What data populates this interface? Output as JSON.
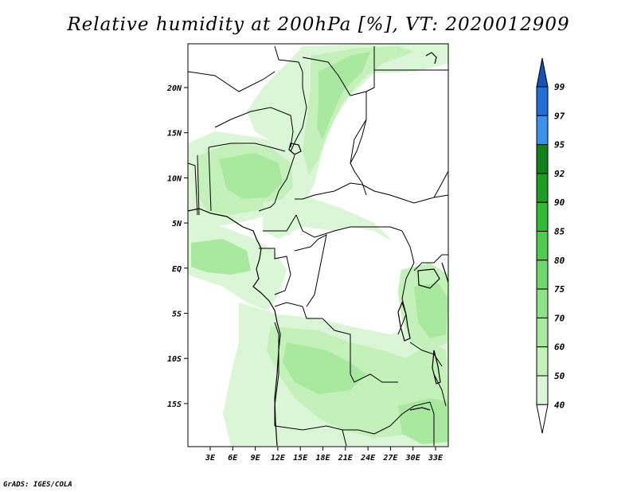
{
  "title": "Relative humidity at 200hPa [%], VT: 2020012909",
  "credit": "GrADS: IGES/COLA",
  "map": {
    "lat_ticks": [
      "20N",
      "15N",
      "10N",
      "5N",
      "EQ",
      "5S",
      "10S",
      "15S"
    ],
    "lon_ticks": [
      "3E",
      "6E",
      "9E",
      "12E",
      "15E",
      "18E",
      "21E",
      "24E",
      "27E",
      "30E",
      "33E"
    ]
  },
  "colorbar": {
    "levels": [
      "40",
      "50",
      "60",
      "70",
      "75",
      "80",
      "85",
      "90",
      "92",
      "95",
      "97",
      "99"
    ],
    "colors": [
      "#f0fbef",
      "#dbf6d6",
      "#c4f0ba",
      "#a9e99f",
      "#8ee286",
      "#6fd86a",
      "#4fcc4e",
      "#31ba35",
      "#1e9d23",
      "#0f8219",
      "#3c91e8",
      "#1f6fd6",
      "#1451b8"
    ]
  }
}
